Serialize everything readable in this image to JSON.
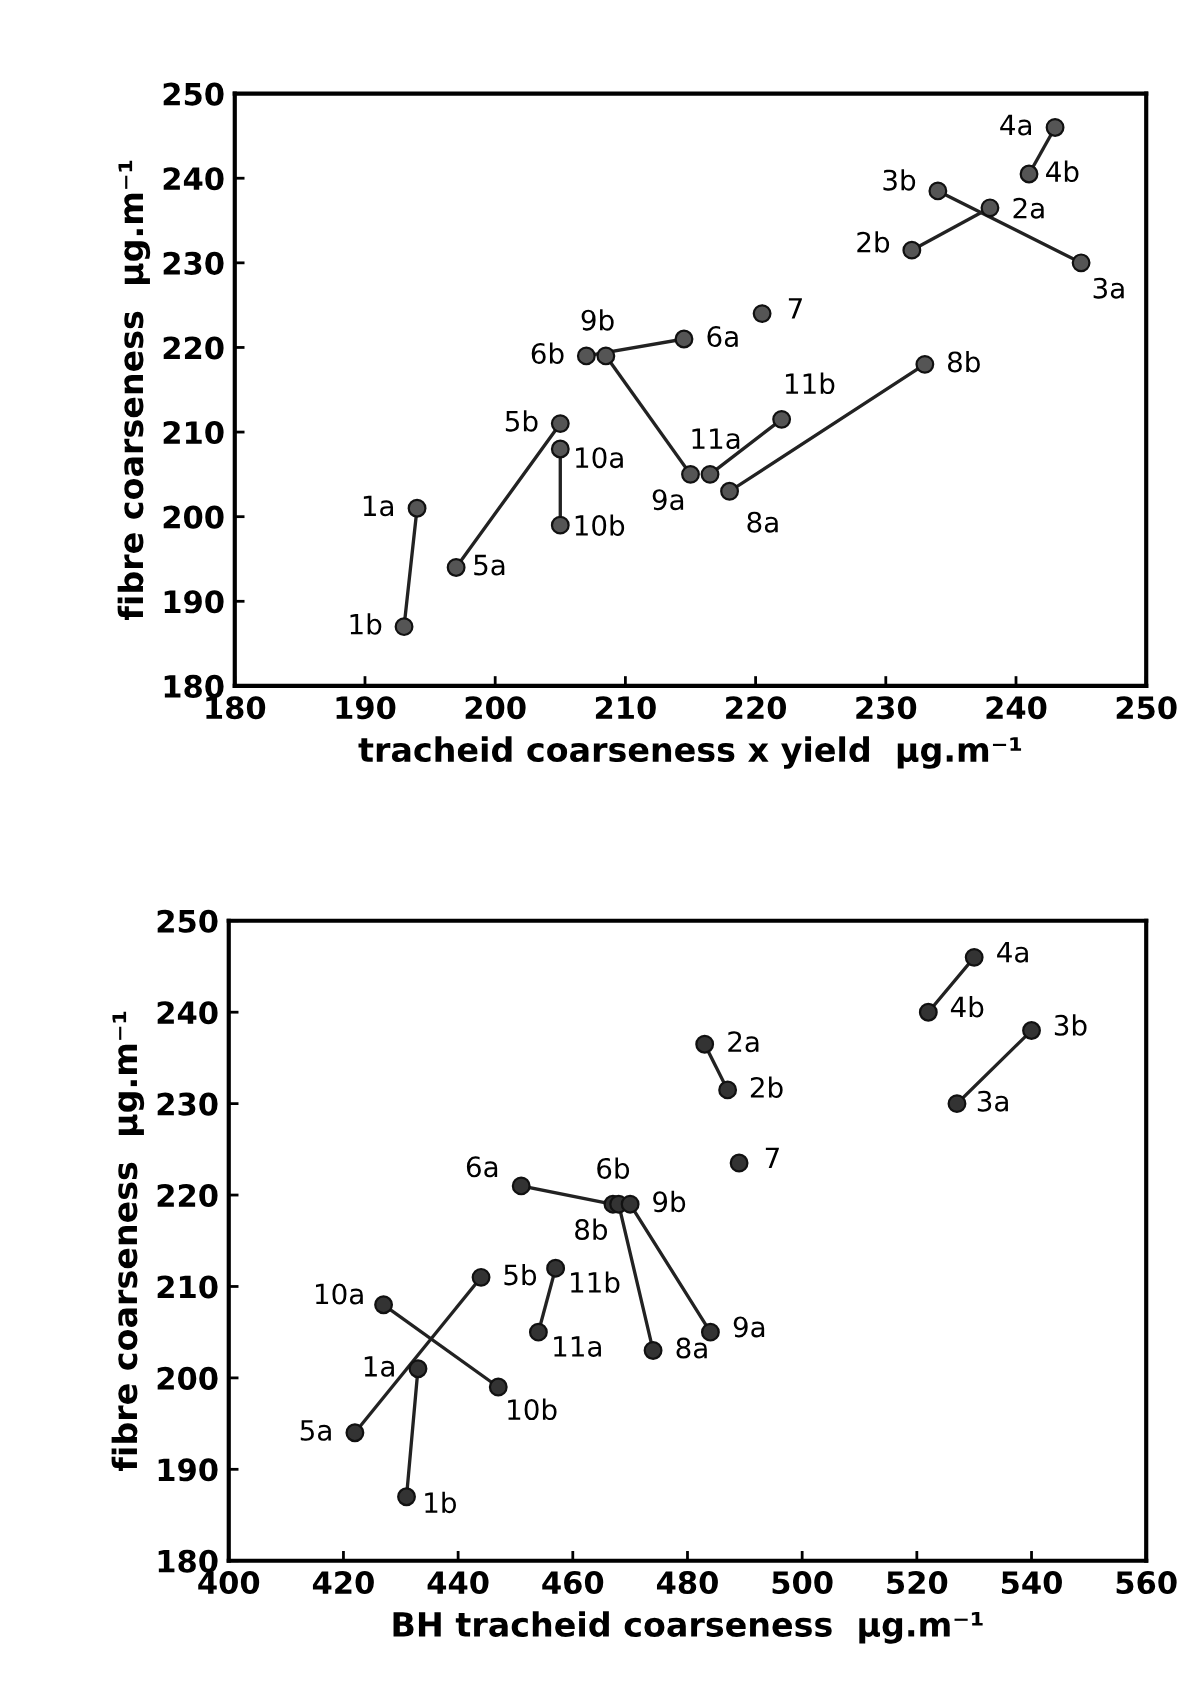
{
  "chart_data": [
    {
      "type": "scatter",
      "xlabel": "tracheid coarseness x yield  µg.m⁻¹",
      "ylabel": "fibre coarseness  µg.m⁻¹",
      "xlim": [
        180,
        250
      ],
      "ylim": [
        180,
        250
      ],
      "xticks": [
        180,
        190,
        200,
        210,
        220,
        230,
        240,
        250
      ],
      "yticks": [
        180,
        190,
        200,
        210,
        220,
        230,
        240,
        250
      ],
      "grid": false,
      "series": [
        {
          "type": "line",
          "color": "#222222",
          "x": [
            194,
            193
          ],
          "values": [
            201,
            187
          ]
        },
        {
          "type": "line",
          "color": "#222222",
          "x": [
            197,
            205
          ],
          "values": [
            194,
            211
          ]
        },
        {
          "type": "line",
          "color": "#222222",
          "x": [
            205,
            205
          ],
          "values": [
            208,
            199
          ]
        },
        {
          "type": "line",
          "color": "#222222",
          "x": [
            214.5,
            207
          ],
          "values": [
            221,
            219
          ]
        },
        {
          "type": "line",
          "color": "#222222",
          "x": [
            215,
            208.5
          ],
          "values": [
            205,
            219
          ]
        },
        {
          "type": "line",
          "color": "#222222",
          "x": [
            216.5,
            222
          ],
          "values": [
            205,
            211.5
          ]
        },
        {
          "type": "line",
          "color": "#222222",
          "x": [
            218,
            233
          ],
          "values": [
            203,
            218
          ]
        },
        {
          "type": "line",
          "color": "#222222",
          "x": [
            238,
            232
          ],
          "values": [
            236.5,
            231.5
          ]
        },
        {
          "type": "line",
          "color": "#222222",
          "x": [
            245,
            234
          ],
          "values": [
            230,
            238.5
          ]
        },
        {
          "type": "line",
          "color": "#222222",
          "x": [
            243,
            241
          ],
          "values": [
            246,
            240.5
          ]
        },
        {
          "color": "#555555",
          "marker": "circle",
          "x": [
            194,
            193,
            197,
            205,
            205,
            205,
            207,
            208.5,
            214.5,
            220.5,
            215,
            216.5,
            222,
            218,
            233,
            232,
            234,
            238,
            245,
            243,
            241
          ],
          "values": [
            201,
            187,
            194,
            211,
            208,
            199,
            219,
            219,
            221,
            224,
            205,
            205,
            211.5,
            203,
            218,
            231.5,
            238.5,
            236.5,
            230,
            246,
            240.5
          ]
        }
      ],
      "annotations": [
        {
          "text": "1a",
          "x": 194,
          "y": 201
        },
        {
          "text": "1b",
          "x": 193,
          "y": 187
        },
        {
          "text": "5a",
          "x": 197,
          "y": 194
        },
        {
          "text": "5b",
          "x": 205,
          "y": 211
        },
        {
          "text": "10a",
          "x": 205,
          "y": 208
        },
        {
          "text": "10b",
          "x": 205,
          "y": 199
        },
        {
          "text": "6b",
          "x": 207,
          "y": 219
        },
        {
          "text": "9b",
          "x": 208.5,
          "y": 219
        },
        {
          "text": "6a",
          "x": 214.5,
          "y": 221
        },
        {
          "text": "7",
          "x": 220.5,
          "y": 224
        },
        {
          "text": "9a",
          "x": 215,
          "y": 205
        },
        {
          "text": "11a",
          "x": 216.5,
          "y": 205
        },
        {
          "text": "11b",
          "x": 222,
          "y": 211.5
        },
        {
          "text": "8a",
          "x": 218,
          "y": 203
        },
        {
          "text": "8b",
          "x": 233,
          "y": 218
        },
        {
          "text": "2b",
          "x": 232,
          "y": 231.5
        },
        {
          "text": "3b",
          "x": 234,
          "y": 238.5
        },
        {
          "text": "2a",
          "x": 238,
          "y": 236.5
        },
        {
          "text": "3a",
          "x": 245,
          "y": 230
        },
        {
          "text": "4a",
          "x": 243,
          "y": 246
        },
        {
          "text": "4b",
          "x": 241,
          "y": 240.5
        }
      ]
    },
    {
      "type": "scatter",
      "xlabel": "BH tracheid coarseness  µg.m⁻¹",
      "ylabel": "fibre coarseness  µg.m⁻¹",
      "xlim": [
        400,
        560
      ],
      "ylim": [
        180,
        250
      ],
      "xticks": [
        400,
        420,
        440,
        460,
        480,
        500,
        520,
        540,
        560
      ],
      "yticks": [
        180,
        190,
        200,
        210,
        220,
        230,
        240,
        250
      ],
      "grid": false,
      "series": [
        {
          "type": "line",
          "color": "#222222",
          "x": [
            433,
            431
          ],
          "values": [
            201,
            187
          ]
        },
        {
          "type": "line",
          "color": "#222222",
          "x": [
            422,
            444
          ],
          "values": [
            194,
            211
          ]
        },
        {
          "type": "line",
          "color": "#222222",
          "x": [
            427,
            447
          ],
          "values": [
            208,
            199
          ]
        },
        {
          "type": "line",
          "color": "#222222",
          "x": [
            454,
            457
          ],
          "values": [
            205,
            212
          ]
        },
        {
          "type": "line",
          "color": "#222222",
          "x": [
            451,
            467
          ],
          "values": [
            221,
            219
          ]
        },
        {
          "type": "line",
          "color": "#222222",
          "x": [
            474,
            468
          ],
          "values": [
            203,
            219
          ]
        },
        {
          "type": "line",
          "color": "#222222",
          "x": [
            484,
            470
          ],
          "values": [
            205,
            219
          ]
        },
        {
          "type": "line",
          "color": "#222222",
          "x": [
            483,
            487
          ],
          "values": [
            236.5,
            231.5
          ]
        },
        {
          "type": "line",
          "color": "#222222",
          "x": [
            530,
            522
          ],
          "values": [
            246,
            240
          ]
        },
        {
          "type": "line",
          "color": "#222222",
          "x": [
            527,
            540
          ],
          "values": [
            230,
            238
          ]
        },
        {
          "color": "#333333",
          "marker": "circle",
          "x": [
            433,
            431,
            422,
            444,
            427,
            447,
            454,
            457,
            451,
            467,
            468,
            470,
            474,
            484,
            483,
            487,
            489,
            530,
            522,
            540,
            527
          ],
          "values": [
            201,
            187,
            194,
            211,
            208,
            199,
            205,
            212,
            221,
            219,
            219,
            219,
            203,
            205,
            236.5,
            231.5,
            223.5,
            246,
            240,
            238,
            230
          ]
        }
      ],
      "annotations": [
        {
          "text": "1a",
          "x": 433,
          "y": 201
        },
        {
          "text": "1b",
          "x": 431,
          "y": 187
        },
        {
          "text": "5a",
          "x": 422,
          "y": 194
        },
        {
          "text": "5b",
          "x": 444,
          "y": 211
        },
        {
          "text": "10a",
          "x": 427,
          "y": 208
        },
        {
          "text": "10b",
          "x": 447,
          "y": 199
        },
        {
          "text": "11a",
          "x": 454,
          "y": 205
        },
        {
          "text": "11b",
          "x": 457,
          "y": 212
        },
        {
          "text": "6a",
          "x": 451,
          "y": 221
        },
        {
          "text": "6b",
          "x": 467,
          "y": 219
        },
        {
          "text": "8b",
          "x": 468,
          "y": 219
        },
        {
          "text": "9b",
          "x": 470,
          "y": 219
        },
        {
          "text": "8a",
          "x": 474,
          "y": 203
        },
        {
          "text": "9a",
          "x": 484,
          "y": 205
        },
        {
          "text": "2a",
          "x": 483,
          "y": 236.5
        },
        {
          "text": "2b",
          "x": 487,
          "y": 231.5
        },
        {
          "text": "7",
          "x": 489,
          "y": 223.5
        },
        {
          "text": "4a",
          "x": 530,
          "y": 246
        },
        {
          "text": "4b",
          "x": 522,
          "y": 240
        },
        {
          "text": "3b",
          "x": 540,
          "y": 238
        },
        {
          "text": "3a",
          "x": 527,
          "y": 230
        }
      ]
    }
  ]
}
